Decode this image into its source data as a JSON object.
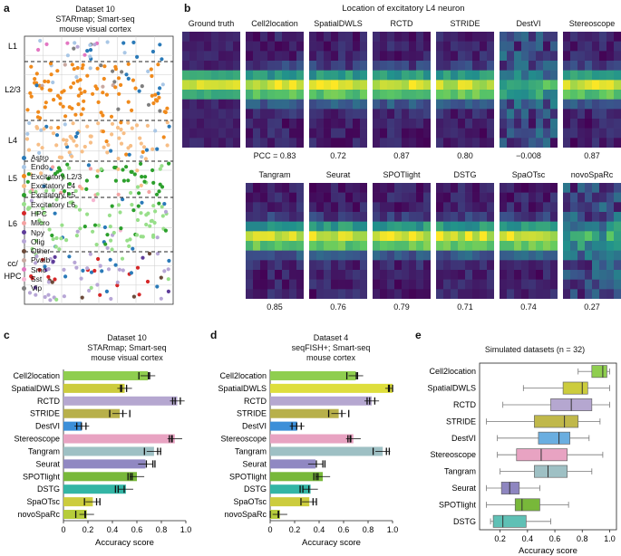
{
  "panel_a": {
    "letter": "a",
    "title_lines": [
      "Dataset 10",
      "STARmap; Smart-seq",
      "mouse visual cortex"
    ],
    "layers": [
      "L1",
      "L2/3",
      "L4",
      "L5",
      "L6",
      "cc/",
      "HPC"
    ],
    "legend": [
      {
        "name": "Astro",
        "color": "#2a7ab8"
      },
      {
        "name": "Endo",
        "color": "#a9c7e6"
      },
      {
        "name": "Excitatory L2/3",
        "color": "#f08a1c"
      },
      {
        "name": "Excitatory L4",
        "color": "#f7be86"
      },
      {
        "name": "Excitatory L5",
        "color": "#2ca02c"
      },
      {
        "name": "Excitatory L6",
        "color": "#98df8a"
      },
      {
        "name": "HPC",
        "color": "#d62728"
      },
      {
        "name": "Micro",
        "color": "#f4a3a3"
      },
      {
        "name": "Npy",
        "color": "#5e3c99"
      },
      {
        "name": "Olig",
        "color": "#b7a6d6"
      },
      {
        "name": "Other",
        "color": "#6b4a3a"
      },
      {
        "name": "Pvalb",
        "color": "#c9a8a0"
      },
      {
        "name": "Smc",
        "color": "#e377c2"
      },
      {
        "name": "Sst",
        "color": "#f7b6d2"
      },
      {
        "name": "Vip",
        "color": "#7f7f7f"
      }
    ]
  },
  "panel_b": {
    "letter": "b",
    "title": "Location of excitatory L4 neuron",
    "row1": [
      {
        "name": "Ground truth",
        "score": ""
      },
      {
        "name": "Cell2location",
        "score": "PCC = 0.83"
      },
      {
        "name": "SpatialDWLS",
        "score": "0.72"
      },
      {
        "name": "RCTD",
        "score": "0.87"
      },
      {
        "name": "STRIDE",
        "score": "0.80"
      },
      {
        "name": "DestVI",
        "score": "−0.008"
      },
      {
        "name": "Stereoscope",
        "score": "0.87"
      }
    ],
    "row2": [
      {
        "name": "Tangram",
        "score": "0.85"
      },
      {
        "name": "Seurat",
        "score": "0.76"
      },
      {
        "name": "SPOTlight",
        "score": "0.79"
      },
      {
        "name": "DSTG",
        "score": "0.71"
      },
      {
        "name": "SpaOTsc",
        "score": "0.74"
      },
      {
        "name": "novoSpaRc",
        "score": "0.27"
      }
    ]
  },
  "chart_data": [
    {
      "id": "c",
      "type": "bar",
      "letter": "c",
      "title_lines": [
        "Dataset 10",
        "STARmap; Smart-seq",
        "mouse visual cortex"
      ],
      "categories": [
        "Cell2location",
        "SpatialDWLS",
        "RCTD",
        "STRIDE",
        "DestVI",
        "Stereoscope",
        "Tangram",
        "Seurat",
        "SPOTlight",
        "DSTG",
        "SpaOTsc",
        "novoSpaRc"
      ],
      "values": [
        0.69,
        0.5,
        0.93,
        0.46,
        0.15,
        0.91,
        0.74,
        0.67,
        0.6,
        0.51,
        0.24,
        0.19
      ],
      "colors": [
        "#8fce4f",
        "#cccc3d",
        "#b5a7d0",
        "#b8b04a",
        "#3c8fd8",
        "#e8a3c2",
        "#9ec0c4",
        "#9088c2",
        "#78b83a",
        "#33b5a5",
        "#cccc3d",
        "#b6cc3a"
      ],
      "xlabel": "Accuracy score",
      "xlim": [
        0,
        1.0
      ],
      "xticks": [
        "0",
        "0.2",
        "0.4",
        "0.6",
        "0.8",
        "1.0"
      ]
    },
    {
      "id": "d",
      "type": "bar",
      "letter": "d",
      "title_lines": [
        "Dataset 4",
        "seqFISH+; Smart-seq",
        "mouse cortex"
      ],
      "categories": [
        "Cell2location",
        "SpatialDWLS",
        "RCTD",
        "STRIDE",
        "DestVI",
        "Stereoscope",
        "Tangram",
        "Seurat",
        "SPOTlight",
        "DSTG",
        "SpaOTsc",
        "novoSpaRc"
      ],
      "values": [
        0.7,
        1.0,
        0.83,
        0.56,
        0.22,
        0.68,
        0.92,
        0.37,
        0.43,
        0.33,
        0.32,
        0.08
      ],
      "colors": [
        "#8fce4f",
        "#dede3d",
        "#b5a7d0",
        "#b8b04a",
        "#3c8fd8",
        "#e8a3c2",
        "#9ec0c4",
        "#9088c2",
        "#78b83a",
        "#33b5a5",
        "#cccc3d",
        "#b6cc3a"
      ],
      "xlabel": "Accuracy score",
      "xlim": [
        0,
        1.0
      ],
      "xticks": [
        "0",
        "0.2",
        "0.4",
        "0.6",
        "0.8",
        "1.0"
      ]
    },
    {
      "id": "e",
      "type": "box",
      "letter": "e",
      "title": "Simulated datasets (n = 32)",
      "categories": [
        "Cell2location",
        "SpatialDWLS",
        "RCTD",
        "STRIDE",
        "DestVI",
        "Stereoscope",
        "Tangram",
        "Seurat",
        "SPOTlight",
        "DSTG"
      ],
      "boxes": [
        {
          "min": 0.77,
          "q1": 0.87,
          "median": 0.95,
          "q3": 0.98,
          "max": 1.0
        },
        {
          "min": 0.37,
          "q1": 0.66,
          "median": 0.8,
          "q3": 0.84,
          "max": 1.0
        },
        {
          "min": 0.22,
          "q1": 0.57,
          "median": 0.72,
          "q3": 0.87,
          "max": 1.0
        },
        {
          "min": 0.1,
          "q1": 0.45,
          "median": 0.67,
          "q3": 0.77,
          "max": 0.93
        },
        {
          "min": 0.18,
          "q1": 0.48,
          "median": 0.63,
          "q3": 0.71,
          "max": 0.85
        },
        {
          "min": 0.18,
          "q1": 0.32,
          "median": 0.5,
          "q3": 0.69,
          "max": 0.95
        },
        {
          "min": 0.2,
          "q1": 0.45,
          "median": 0.55,
          "q3": 0.69,
          "max": 0.87
        },
        {
          "min": 0.1,
          "q1": 0.21,
          "median": 0.27,
          "q3": 0.34,
          "max": 0.49
        },
        {
          "min": 0.1,
          "q1": 0.31,
          "median": 0.36,
          "q3": 0.49,
          "max": 0.7
        },
        {
          "min": 0.13,
          "q1": 0.15,
          "median": 0.22,
          "q3": 0.39,
          "max": 0.57
        }
      ],
      "colors": [
        "#8fce4f",
        "#cccc3d",
        "#b5a7d0",
        "#c0b84a",
        "#6aaee0",
        "#e8a3c2",
        "#9ec0c4",
        "#8e86c0",
        "#78b83a",
        "#5fc0b5"
      ],
      "xlabel": "Accuracy score",
      "xlim": [
        0.05,
        1.05
      ],
      "xticks": [
        "0.2",
        "0.4",
        "0.6",
        "0.8",
        "1.0"
      ]
    }
  ]
}
